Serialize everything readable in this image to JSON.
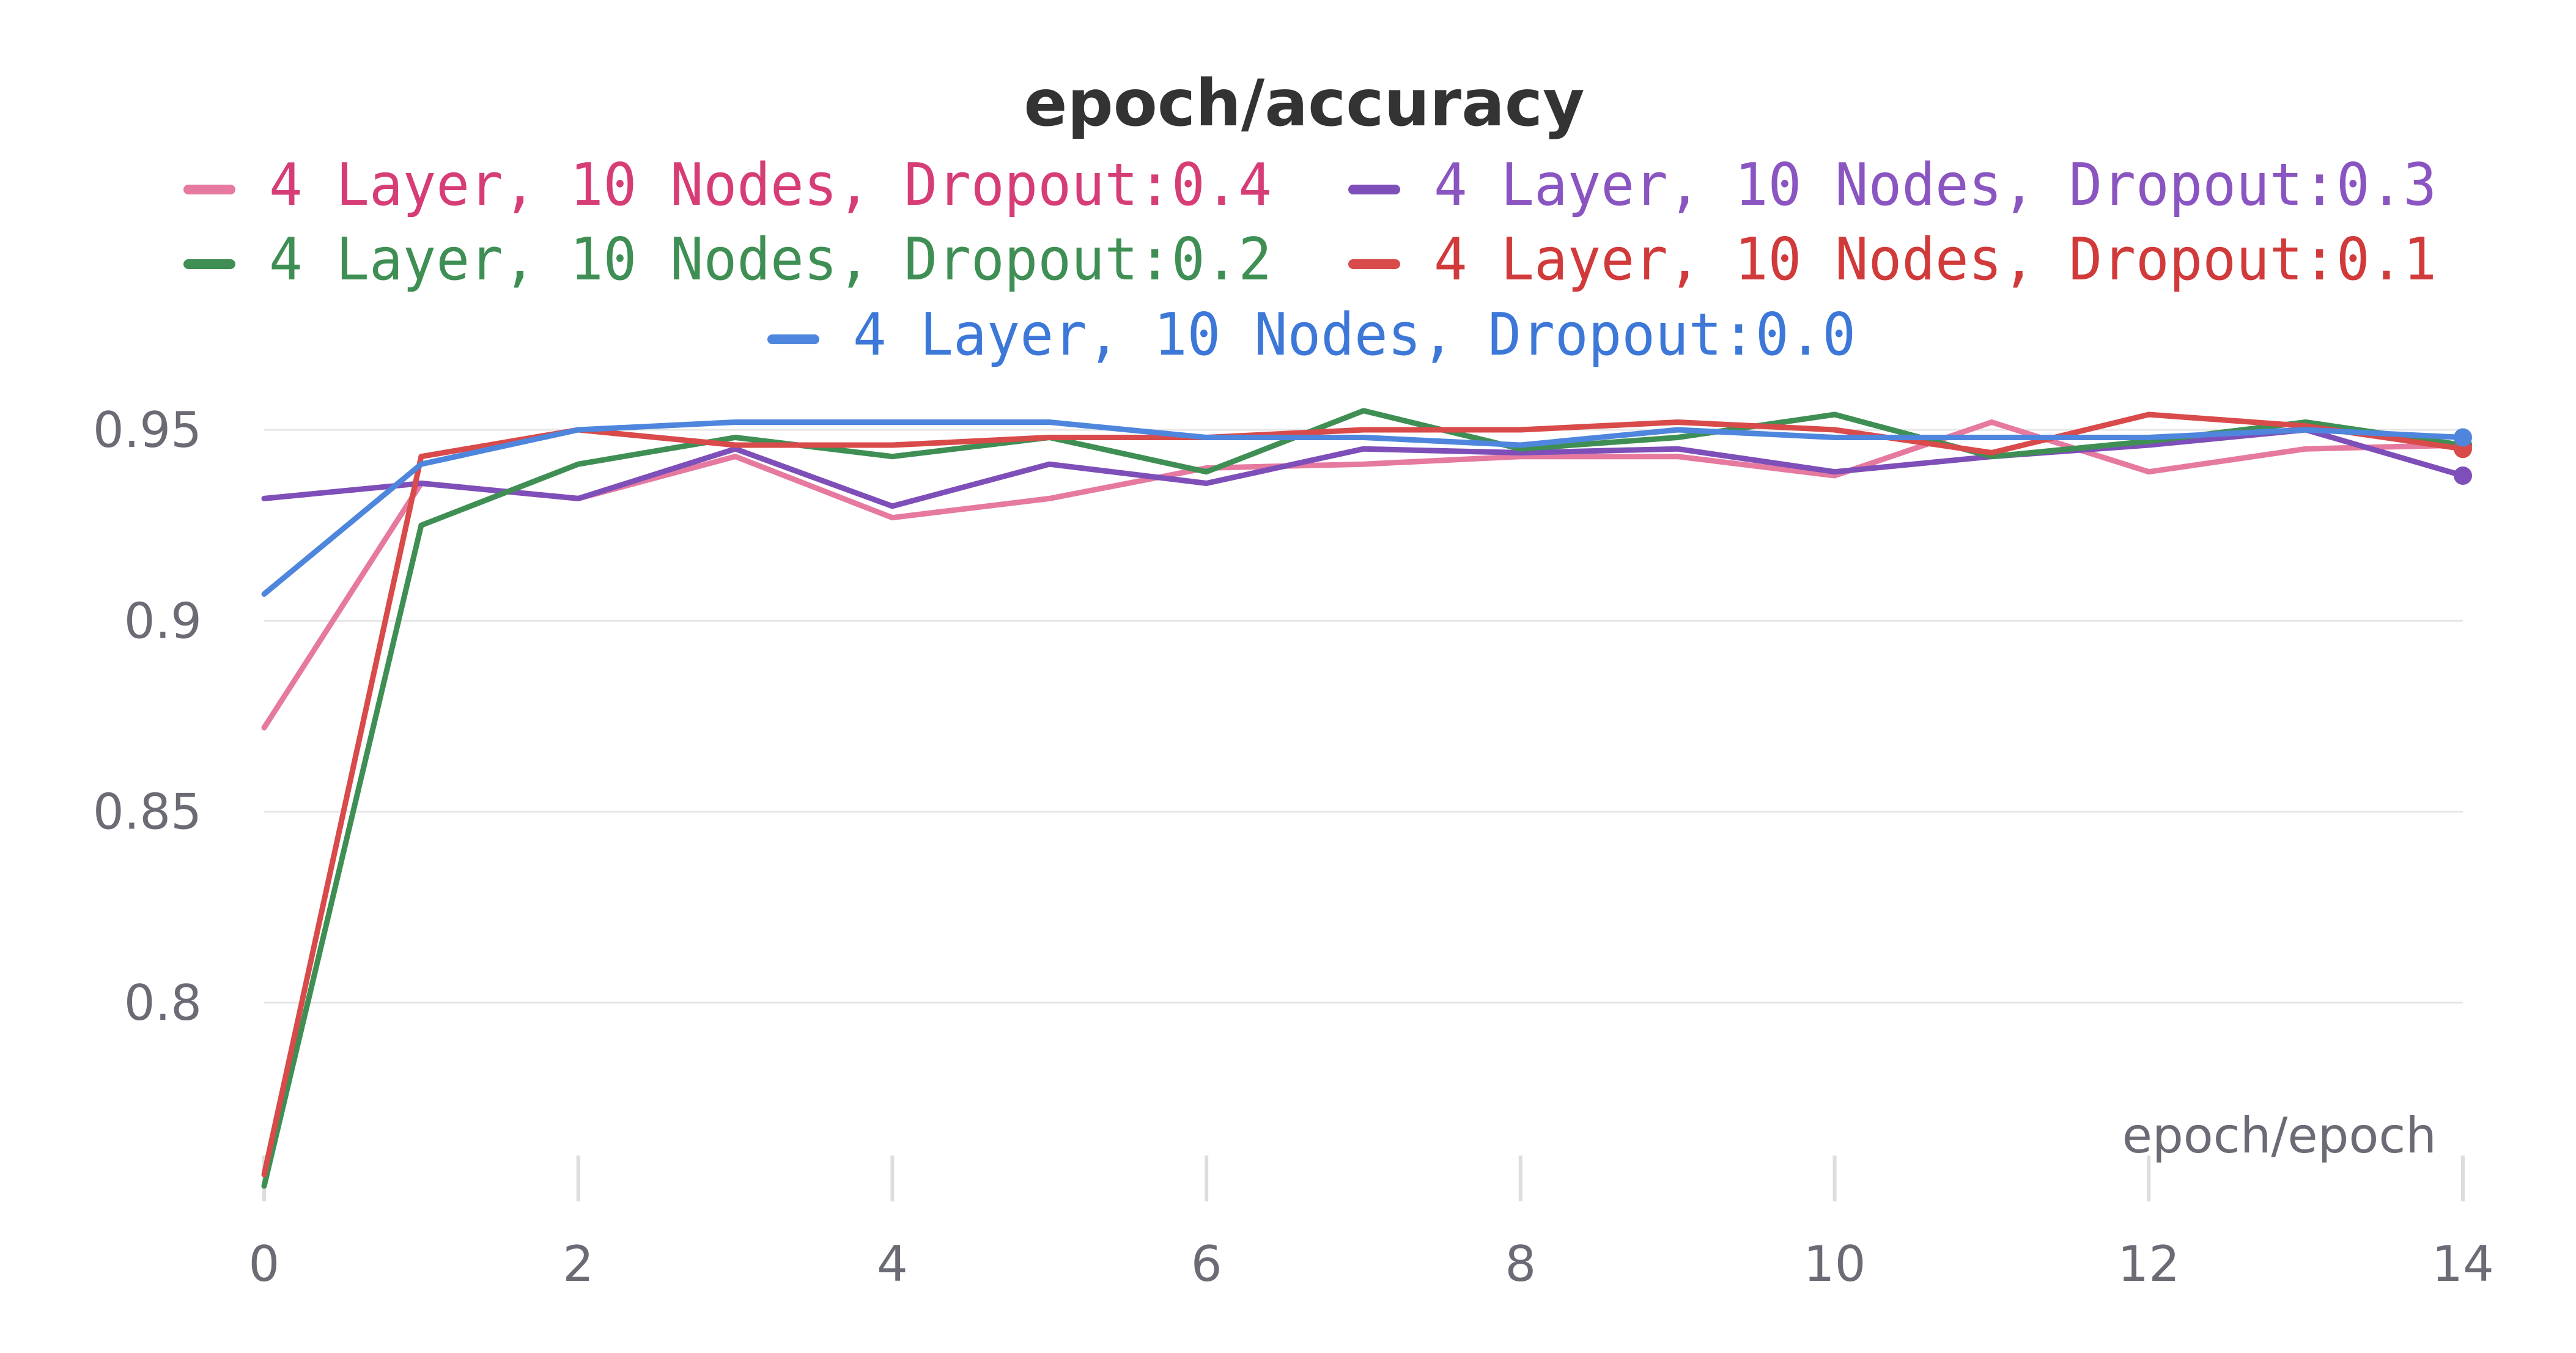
{
  "chart_data": {
    "type": "line",
    "title": "epoch/accuracy",
    "xlabel": "epoch/epoch",
    "ylabel": "",
    "xlim": [
      0,
      14
    ],
    "ylim": [
      0.75,
      0.965
    ],
    "x_ticks": [
      0,
      2,
      4,
      6,
      8,
      10,
      12,
      14
    ],
    "y_ticks": [
      0.8,
      0.85,
      0.9,
      0.95
    ],
    "grid": true,
    "legend_position": "top",
    "x": [
      0,
      1,
      2,
      3,
      4,
      5,
      6,
      7,
      8,
      9,
      10,
      11,
      12,
      13,
      14
    ],
    "series": [
      {
        "name": "4 Layer, 10 Nodes, Dropout:0.4",
        "color": "#e6799f",
        "text_color": "#d63d76",
        "values": [
          0.872,
          0.936,
          0.932,
          0.943,
          0.927,
          0.932,
          0.94,
          0.941,
          0.943,
          0.943,
          0.938,
          0.952,
          0.939,
          0.945,
          0.946
        ]
      },
      {
        "name": "4 Layer, 10 Nodes, Dropout:0.3",
        "color": "#7e4fb8",
        "text_color": "#8a55c0",
        "values": [
          0.932,
          0.936,
          0.932,
          0.945,
          0.93,
          0.941,
          0.936,
          0.945,
          0.944,
          0.945,
          0.939,
          0.943,
          0.946,
          0.95,
          0.938
        ]
      },
      {
        "name": "4 Layer, 10 Nodes, Dropout:0.2",
        "color": "#3f8f55",
        "text_color": "#3f8f55",
        "values": [
          0.752,
          0.925,
          0.941,
          0.948,
          0.943,
          0.948,
          0.939,
          0.955,
          0.945,
          0.948,
          0.954,
          0.943,
          0.947,
          0.952,
          0.946
        ]
      },
      {
        "name": "4 Layer, 10 Nodes, Dropout:0.1",
        "color": "#d94a4a",
        "text_color": "#d13a3a",
        "values": [
          0.755,
          0.943,
          0.95,
          0.946,
          0.946,
          0.948,
          0.948,
          0.95,
          0.95,
          0.952,
          0.95,
          0.944,
          0.954,
          0.951,
          0.945
        ]
      },
      {
        "name": "4 Layer, 10 Nodes, Dropout:0.0",
        "color": "#4f86dd",
        "text_color": "#3d78d8",
        "values": [
          0.907,
          0.941,
          0.95,
          0.952,
          0.952,
          0.952,
          0.948,
          0.948,
          0.946,
          0.95,
          0.948,
          0.948,
          0.948,
          0.95,
          0.948
        ]
      }
    ]
  }
}
